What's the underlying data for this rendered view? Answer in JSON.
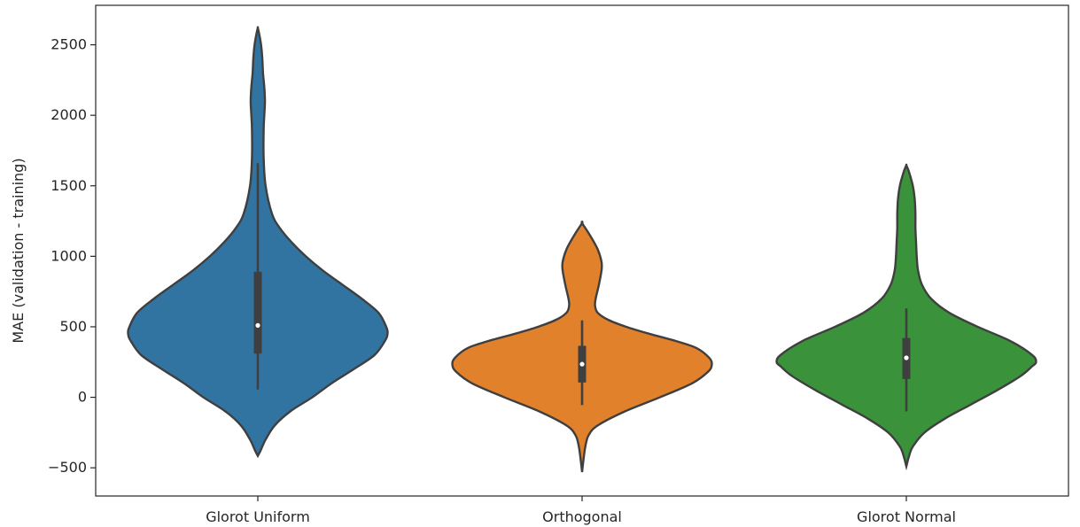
{
  "chart_data": {
    "type": "violin",
    "title": "",
    "xlabel": "",
    "ylabel": "MAE (validation - training)",
    "ylim": [
      -700,
      2780
    ],
    "yticks": [
      -500,
      0,
      500,
      1000,
      1500,
      2000,
      2500
    ],
    "grid": false,
    "legend": "none",
    "categories": [
      "Glorot Uniform",
      "Orthogonal",
      "Glorot Normal"
    ],
    "violins": [
      {
        "category": "Glorot Uniform",
        "color": "#3274a1",
        "min": -415,
        "max": 2620,
        "median": 510,
        "q1": 310,
        "q3": 890,
        "whisker_low": 55,
        "whisker_high": 1660,
        "profile": [
          [
            -415,
            0.0
          ],
          [
            -380,
            0.02
          ],
          [
            -300,
            0.06
          ],
          [
            -200,
            0.13
          ],
          [
            -100,
            0.25
          ],
          [
            0,
            0.42
          ],
          [
            100,
            0.57
          ],
          [
            200,
            0.74
          ],
          [
            300,
            0.9
          ],
          [
            400,
            0.98
          ],
          [
            450,
            1.0
          ],
          [
            500,
            0.99
          ],
          [
            600,
            0.93
          ],
          [
            700,
            0.8
          ],
          [
            800,
            0.65
          ],
          [
            900,
            0.5
          ],
          [
            1000,
            0.37
          ],
          [
            1100,
            0.26
          ],
          [
            1200,
            0.17
          ],
          [
            1300,
            0.11
          ],
          [
            1500,
            0.06
          ],
          [
            1700,
            0.045
          ],
          [
            1900,
            0.045
          ],
          [
            2000,
            0.05
          ],
          [
            2100,
            0.055
          ],
          [
            2200,
            0.05
          ],
          [
            2300,
            0.04
          ],
          [
            2400,
            0.035
          ],
          [
            2500,
            0.025
          ],
          [
            2580,
            0.01
          ],
          [
            2620,
            0.0
          ]
        ]
      },
      {
        "category": "Orthogonal",
        "color": "#e1812c",
        "min": -530,
        "max": 1235,
        "median": 235,
        "q1": 105,
        "q3": 365,
        "whisker_low": -55,
        "whisker_high": 545,
        "profile": [
          [
            -530,
            0.0
          ],
          [
            -450,
            0.01
          ],
          [
            -350,
            0.025
          ],
          [
            -270,
            0.05
          ],
          [
            -200,
            0.12
          ],
          [
            -100,
            0.33
          ],
          [
            0,
            0.6
          ],
          [
            100,
            0.85
          ],
          [
            180,
            0.97
          ],
          [
            230,
            1.0
          ],
          [
            280,
            0.98
          ],
          [
            350,
            0.88
          ],
          [
            400,
            0.72
          ],
          [
            450,
            0.52
          ],
          [
            500,
            0.34
          ],
          [
            550,
            0.2
          ],
          [
            600,
            0.12
          ],
          [
            650,
            0.1
          ],
          [
            700,
            0.105
          ],
          [
            800,
            0.13
          ],
          [
            900,
            0.15
          ],
          [
            960,
            0.15
          ],
          [
            1050,
            0.12
          ],
          [
            1150,
            0.06
          ],
          [
            1235,
            0.0
          ]
        ]
      },
      {
        "category": "Glorot Normal",
        "color": "#3a923a",
        "min": -490,
        "max": 1645,
        "median": 280,
        "q1": 130,
        "q3": 420,
        "whisker_low": -100,
        "whisker_high": 630,
        "profile": [
          [
            -490,
            0.0
          ],
          [
            -420,
            0.02
          ],
          [
            -350,
            0.05
          ],
          [
            -250,
            0.14
          ],
          [
            -150,
            0.3
          ],
          [
            -50,
            0.5
          ],
          [
            50,
            0.7
          ],
          [
            150,
            0.88
          ],
          [
            220,
            0.97
          ],
          [
            250,
            1.0
          ],
          [
            300,
            0.97
          ],
          [
            400,
            0.8
          ],
          [
            500,
            0.55
          ],
          [
            600,
            0.33
          ],
          [
            700,
            0.19
          ],
          [
            800,
            0.12
          ],
          [
            900,
            0.09
          ],
          [
            1000,
            0.08
          ],
          [
            1100,
            0.075
          ],
          [
            1200,
            0.07
          ],
          [
            1300,
            0.07
          ],
          [
            1400,
            0.065
          ],
          [
            1500,
            0.05
          ],
          [
            1600,
            0.02
          ],
          [
            1645,
            0.0
          ]
        ]
      }
    ]
  }
}
